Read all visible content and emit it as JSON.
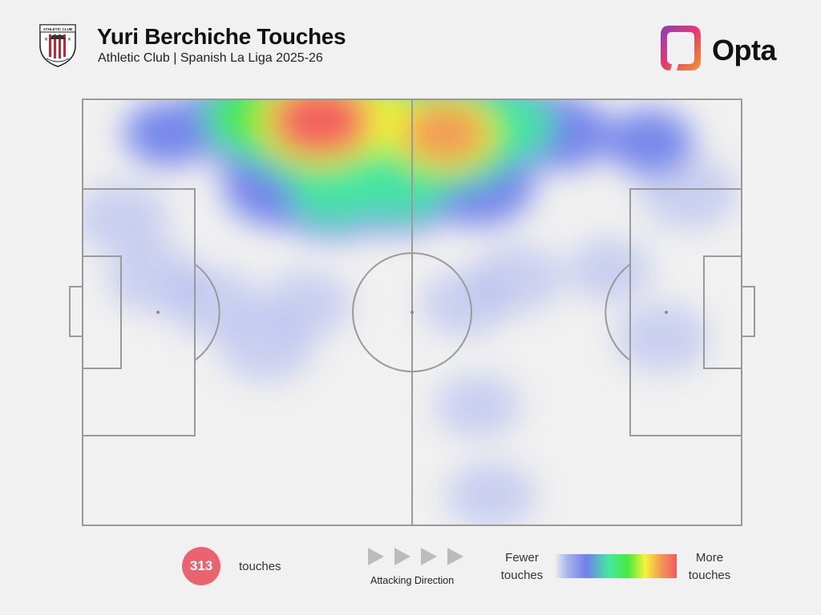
{
  "header": {
    "title": "Yuri Berchiche Touches",
    "subtitle": "Athletic Club | Spanish La Liga 2025-26",
    "brand": "Opta",
    "crest_text": "ATHLETIC CLUB BILBAO"
  },
  "footer": {
    "touch_count": "313",
    "touch_label": "touches",
    "direction_label": "Attacking Direction",
    "legend_fewer": [
      "Fewer",
      "touches"
    ],
    "legend_more": [
      "More",
      "touches"
    ]
  },
  "colors": {
    "background": "#f1f1f1",
    "pitch_lines": "#9a9a9a",
    "count_badge": "#e9646f",
    "arrow": "#bbbbbb",
    "heat_scale": [
      "#eeeeee",
      "#a9b5ee",
      "#6f80ea",
      "#44e9a1",
      "#4ae83e",
      "#f5f33a",
      "#f4935a",
      "#f35a62"
    ],
    "opta_gradient": [
      "#8a3dbb",
      "#e63a6e",
      "#f29a2e"
    ]
  },
  "chart_data": {
    "type": "heatmap",
    "title": "Yuri Berchiche Touches",
    "subtitle": "Athletic Club | Spanish La Liga 2025-26",
    "x_axis": "pitch length (0 = own goal, 100 = opponent goal)",
    "y_axis": "pitch width (0 = top touchline, 100 = bottom touchline)",
    "attacking_direction": "left-to-right",
    "total_touches": 313,
    "hotspots": [
      {
        "x": 36,
        "y": 5,
        "intensity": 1.0
      },
      {
        "x": 27,
        "y": 4,
        "intensity": 0.62
      },
      {
        "x": 45,
        "y": 5,
        "intensity": 0.72
      },
      {
        "x": 55,
        "y": 8,
        "intensity": 0.86
      },
      {
        "x": 64,
        "y": 6,
        "intensity": 0.52
      },
      {
        "x": 48,
        "y": 20,
        "intensity": 0.5
      },
      {
        "x": 38,
        "y": 22,
        "intensity": 0.44
      },
      {
        "x": 30,
        "y": 20,
        "intensity": 0.38
      },
      {
        "x": 60,
        "y": 20,
        "intensity": 0.36
      },
      {
        "x": 73,
        "y": 8,
        "intensity": 0.26
      },
      {
        "x": 86,
        "y": 10,
        "intensity": 0.2
      },
      {
        "x": 92,
        "y": 22,
        "intensity": 0.18
      },
      {
        "x": 13,
        "y": 8,
        "intensity": 0.2
      },
      {
        "x": 6,
        "y": 28,
        "intensity": 0.16
      },
      {
        "x": 11,
        "y": 42,
        "intensity": 0.16
      },
      {
        "x": 20,
        "y": 48,
        "intensity": 0.15
      },
      {
        "x": 28,
        "y": 58,
        "intensity": 0.16
      },
      {
        "x": 34,
        "y": 48,
        "intensity": 0.12
      },
      {
        "x": 58,
        "y": 48,
        "intensity": 0.12
      },
      {
        "x": 66,
        "y": 42,
        "intensity": 0.14
      },
      {
        "x": 88,
        "y": 56,
        "intensity": 0.15
      },
      {
        "x": 80,
        "y": 40,
        "intensity": 0.1
      },
      {
        "x": 60,
        "y": 72,
        "intensity": 0.1
      },
      {
        "x": 62,
        "y": 93,
        "intensity": 0.13
      }
    ],
    "legend": {
      "low": "Fewer touches",
      "high": "More touches",
      "placement": "bottom-right"
    }
  }
}
